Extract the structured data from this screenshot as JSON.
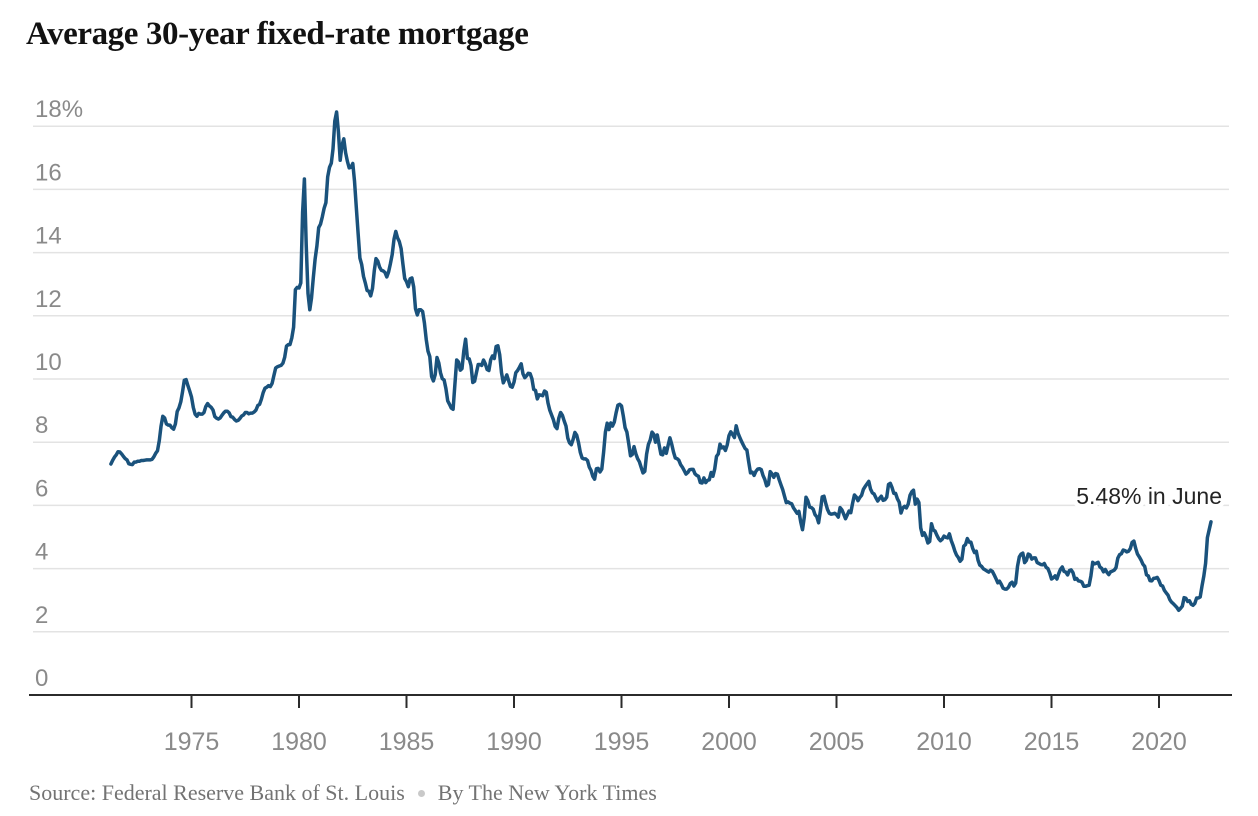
{
  "chart_data": {
    "type": "line",
    "title": "Average 30-year fixed-rate mortgage",
    "unit": "percent",
    "xlabel": "",
    "ylabel": "",
    "grid": "horizontal",
    "legend_position": "none",
    "x_axis": {
      "range_years": [
        1970.2,
        2023.3
      ],
      "ticks": [
        {
          "year": 1975,
          "label": "1975"
        },
        {
          "year": 1980,
          "label": "1980"
        },
        {
          "year": 1985,
          "label": "1985"
        },
        {
          "year": 1990,
          "label": "1990"
        },
        {
          "year": 1995,
          "label": "1995"
        },
        {
          "year": 2000,
          "label": "2000"
        },
        {
          "year": 2005,
          "label": "2005"
        },
        {
          "year": 2010,
          "label": "2010"
        },
        {
          "year": 2015,
          "label": "2015"
        },
        {
          "year": 2020,
          "label": "2020"
        }
      ]
    },
    "y_axis": {
      "range": [
        0,
        18
      ],
      "ticks": [
        {
          "value": 18,
          "label": "18%"
        },
        {
          "value": 16,
          "label": "16"
        },
        {
          "value": 14,
          "label": "14"
        },
        {
          "value": 12,
          "label": "12"
        },
        {
          "value": 10,
          "label": "10"
        },
        {
          "value": 8,
          "label": "8"
        },
        {
          "value": 6,
          "label": "6"
        },
        {
          "value": 4,
          "label": "4"
        },
        {
          "value": 2,
          "label": "2"
        },
        {
          "value": 0,
          "label": "0"
        }
      ]
    },
    "annotation": {
      "text": "5.48% in June",
      "value": 5.48,
      "month": "June",
      "year": 2022
    },
    "source": "Source: Federal Reserve Bank of St. Louis",
    "byline": "By The New York Times",
    "series": [
      {
        "name": "Average 30-year fixed-rate mortgage",
        "frequency": "monthly",
        "start": "1971-04",
        "end": "2022-06",
        "values_by_year": {
          "1971": [
            7.31,
            7.43,
            7.53,
            7.6,
            7.7,
            7.69,
            7.63,
            7.55,
            7.48
          ],
          "1972": [
            7.44,
            7.32,
            7.3,
            7.29,
            7.37,
            7.37,
            7.4,
            7.4,
            7.42,
            7.42,
            7.43,
            7.44
          ],
          "1973": [
            7.44,
            7.44,
            7.46,
            7.54,
            7.65,
            7.73,
            8.05,
            8.5,
            8.82,
            8.77,
            8.58,
            8.54
          ],
          "1974": [
            8.54,
            8.46,
            8.41,
            8.58,
            8.97,
            9.09,
            9.28,
            9.59,
            9.96,
            9.98,
            9.79,
            9.62
          ],
          "1975": [
            9.43,
            9.1,
            8.89,
            8.82,
            8.91,
            8.89,
            8.89,
            8.94,
            9.13,
            9.22,
            9.15,
            9.1
          ],
          "1976": [
            9.02,
            8.81,
            8.76,
            8.73,
            8.77,
            8.85,
            8.93,
            8.98,
            8.98,
            8.93,
            8.81,
            8.79
          ],
          "1977": [
            8.72,
            8.67,
            8.69,
            8.75,
            8.83,
            8.86,
            8.94,
            8.94,
            8.9,
            8.92,
            8.92,
            8.96
          ],
          "1978": [
            9.02,
            9.16,
            9.2,
            9.36,
            9.57,
            9.71,
            9.74,
            9.79,
            9.76,
            9.86,
            10.11,
            10.35
          ],
          "1979": [
            10.39,
            10.41,
            10.43,
            10.5,
            10.69,
            11.04,
            11.09,
            11.09,
            11.3,
            11.64,
            12.83,
            12.9
          ],
          "1980": [
            12.88,
            13.04,
            15.28,
            16.33,
            14.26,
            12.71,
            12.19,
            12.56,
            13.2,
            13.79,
            14.21,
            14.79
          ],
          "1981": [
            14.9,
            15.13,
            15.4,
            15.58,
            16.4,
            16.7,
            16.83,
            17.28,
            18.16,
            18.45,
            17.82,
            16.92
          ],
          "1982": [
            17.4,
            17.6,
            17.16,
            16.89,
            16.68,
            16.7,
            16.82,
            16.27,
            15.43,
            14.61,
            13.83,
            13.62
          ],
          "1983": [
            13.25,
            13.04,
            12.8,
            12.78,
            12.63,
            12.87,
            13.43,
            13.81,
            13.73,
            13.54,
            13.44,
            13.42
          ],
          "1984": [
            13.37,
            13.23,
            13.39,
            13.65,
            13.94,
            14.42,
            14.67,
            14.47,
            14.35,
            14.13,
            13.64,
            13.18
          ],
          "1985": [
            13.08,
            12.92,
            13.17,
            13.2,
            12.91,
            12.22,
            12.03,
            12.19,
            12.19,
            12.14,
            11.78,
            11.26
          ],
          "1986": [
            10.88,
            10.71,
            10.08,
            9.94,
            10.14,
            10.68,
            10.51,
            10.2,
            10.01,
            9.97,
            9.7,
            9.31
          ],
          "1987": [
            9.2,
            9.08,
            9.04,
            9.83,
            10.6,
            10.54,
            10.28,
            10.33,
            10.89,
            11.26,
            10.65,
            10.64
          ],
          "1988": [
            10.43,
            9.89,
            9.93,
            10.2,
            10.46,
            10.46,
            10.43,
            10.6,
            10.48,
            10.3,
            10.27,
            10.61
          ],
          "1989": [
            10.73,
            10.65,
            11.03,
            11.05,
            10.77,
            10.2,
            9.88,
            9.99,
            10.13,
            9.95,
            9.77,
            9.74
          ],
          "1990": [
            9.9,
            10.2,
            10.27,
            10.37,
            10.48,
            10.16,
            10.04,
            10.1,
            10.18,
            10.17,
            10.01,
            9.67
          ],
          "1991": [
            9.64,
            9.37,
            9.5,
            9.49,
            9.47,
            9.62,
            9.58,
            9.24,
            9.01,
            8.86,
            8.71,
            8.5
          ],
          "1992": [
            8.43,
            8.76,
            8.94,
            8.85,
            8.67,
            8.51,
            8.13,
            7.98,
            7.92,
            8.09,
            8.31,
            8.22
          ],
          "1993": [
            7.99,
            7.68,
            7.5,
            7.47,
            7.47,
            7.42,
            7.21,
            7.11,
            6.92,
            6.83,
            7.16,
            7.17
          ],
          "1994": [
            7.06,
            7.15,
            7.68,
            8.32,
            8.6,
            8.4,
            8.61,
            8.51,
            8.64,
            8.93,
            9.17,
            9.2
          ],
          "1995": [
            9.15,
            8.83,
            8.46,
            8.32,
            7.96,
            7.57,
            7.61,
            7.86,
            7.64,
            7.48,
            7.38,
            7.2
          ],
          "1996": [
            7.03,
            7.08,
            7.62,
            7.93,
            8.07,
            8.32,
            8.25,
            8.0,
            8.23,
            7.92,
            7.62,
            7.6
          ],
          "1997": [
            7.82,
            7.65,
            7.9,
            8.14,
            7.94,
            7.69,
            7.5,
            7.48,
            7.43,
            7.29,
            7.21,
            7.1
          ],
          "1998": [
            6.99,
            7.04,
            7.13,
            7.14,
            7.14,
            7.0,
            6.95,
            6.92,
            6.72,
            6.71,
            6.87,
            6.72
          ],
          "1999": [
            6.79,
            6.81,
            7.04,
            6.92,
            7.15,
            7.55,
            7.63,
            7.94,
            7.82,
            7.85,
            7.74,
            7.91
          ],
          "2000": [
            8.21,
            8.33,
            8.24,
            8.15,
            8.52,
            8.29,
            8.15,
            8.03,
            7.91,
            7.8,
            7.75,
            7.38
          ],
          "2001": [
            7.03,
            7.05,
            6.95,
            7.08,
            7.15,
            7.16,
            7.13,
            6.95,
            6.82,
            6.62,
            6.66,
            7.07
          ],
          "2002": [
            7.0,
            6.89,
            7.01,
            6.99,
            6.81,
            6.65,
            6.49,
            6.29,
            6.09,
            6.11,
            6.07,
            6.05
          ],
          "2003": [
            5.92,
            5.84,
            5.75,
            5.81,
            5.48,
            5.23,
            5.63,
            6.26,
            6.15,
            5.95,
            5.93,
            5.88
          ],
          "2004": [
            5.71,
            5.64,
            5.45,
            5.83,
            6.27,
            6.29,
            6.06,
            5.87,
            5.75,
            5.72,
            5.73,
            5.75
          ],
          "2005": [
            5.71,
            5.63,
            5.93,
            5.86,
            5.72,
            5.58,
            5.7,
            5.82,
            5.77,
            6.07,
            6.33,
            6.27
          ],
          "2006": [
            6.15,
            6.25,
            6.32,
            6.51,
            6.6,
            6.68,
            6.76,
            6.52,
            6.4,
            6.36,
            6.24,
            6.14
          ],
          "2007": [
            6.22,
            6.29,
            6.16,
            6.18,
            6.26,
            6.66,
            6.7,
            6.57,
            6.38,
            6.38,
            6.21,
            6.1
          ],
          "2008": [
            5.76,
            5.92,
            5.97,
            5.92,
            6.04,
            6.32,
            6.43,
            6.48,
            6.04,
            6.2,
            6.09,
            5.29
          ],
          "2009": [
            5.05,
            5.13,
            5.0,
            4.81,
            4.86,
            5.42,
            5.22,
            5.19,
            5.06,
            4.95,
            4.88,
            4.93
          ],
          "2010": [
            5.03,
            4.99,
            4.97,
            5.1,
            4.89,
            4.74,
            4.56,
            4.43,
            4.35,
            4.23,
            4.3,
            4.71
          ],
          "2011": [
            4.76,
            4.95,
            4.84,
            4.84,
            4.64,
            4.51,
            4.55,
            4.27,
            4.11,
            4.07,
            3.99,
            3.96
          ],
          "2012": [
            3.92,
            3.89,
            3.95,
            3.91,
            3.8,
            3.68,
            3.55,
            3.6,
            3.5,
            3.38,
            3.35,
            3.35
          ],
          "2013": [
            3.41,
            3.53,
            3.57,
            3.45,
            3.54,
            4.07,
            4.37,
            4.46,
            4.49,
            4.19,
            4.26,
            4.46
          ],
          "2014": [
            4.43,
            4.3,
            4.34,
            4.34,
            4.19,
            4.16,
            4.13,
            4.12,
            4.16,
            4.04,
            4.0,
            3.86
          ],
          "2015": [
            3.67,
            3.71,
            3.77,
            3.67,
            3.84,
            3.98,
            4.05,
            3.91,
            3.89,
            3.8,
            3.94,
            3.96
          ],
          "2016": [
            3.87,
            3.66,
            3.69,
            3.61,
            3.6,
            3.57,
            3.44,
            3.44,
            3.46,
            3.47,
            3.77,
            4.2
          ],
          "2017": [
            4.15,
            4.17,
            4.2,
            4.05,
            4.01,
            3.9,
            3.97,
            3.88,
            3.81,
            3.9,
            3.92,
            3.95
          ],
          "2018": [
            4.03,
            4.33,
            4.44,
            4.47,
            4.59,
            4.57,
            4.53,
            4.55,
            4.63,
            4.83,
            4.87,
            4.64
          ],
          "2019": [
            4.46,
            4.37,
            4.27,
            4.14,
            4.07,
            3.8,
            3.77,
            3.62,
            3.61,
            3.69,
            3.7,
            3.72
          ],
          "2020": [
            3.62,
            3.47,
            3.45,
            3.31,
            3.23,
            3.16,
            3.02,
            2.94,
            2.89,
            2.83,
            2.77,
            2.68
          ],
          "2021": [
            2.74,
            2.81,
            3.08,
            3.06,
            2.96,
            2.98,
            2.87,
            2.84,
            2.9,
            3.07,
            3.07,
            3.1
          ],
          "2022": [
            3.45,
            3.76,
            4.17,
            4.98,
            5.23,
            5.48
          ]
        }
      }
    ]
  },
  "colors": {
    "line": "#1a527c",
    "grid": "#e3e3e3",
    "axis": "#2b2b2b",
    "tick_label": "#8a8a8a",
    "title": "#121212",
    "annotation": "#242424",
    "source": "#737373",
    "separator_dot": "#c9c9c9"
  }
}
